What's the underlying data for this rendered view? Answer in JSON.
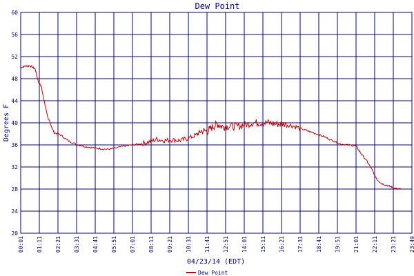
{
  "chart_data": {
    "type": "line",
    "title": "Dew Point",
    "xlabel": "04/23/14 (EDT)",
    "ylabel": "Degrees F",
    "ylim": [
      20,
      60
    ],
    "yticks": [
      "20",
      "24",
      "28",
      "32",
      "36",
      "40",
      "44",
      "48",
      "52",
      "56",
      "60"
    ],
    "xticks": [
      "00:01",
      "01:11",
      "02:21",
      "03:31",
      "04:41",
      "05:51",
      "07:01",
      "08:11",
      "09:21",
      "10:31",
      "11:41",
      "12:51",
      "14:01",
      "15:11",
      "16:21",
      "17:31",
      "18:41",
      "19:51",
      "21:01",
      "22:11",
      "23:21",
      "23:49"
    ],
    "grid": true,
    "legend_position": "bottom-center",
    "series_color": "#c00000",
    "grid_color": "#000080",
    "series": [
      {
        "name": "Dew Point",
        "x_hours": [
          0.0,
          0.3,
          0.6,
          0.9,
          1.1,
          1.3,
          1.5,
          1.7,
          1.9,
          2.1,
          2.5,
          3.0,
          3.5,
          4.0,
          4.5,
          5.0,
          5.5,
          5.9,
          6.5,
          7.0,
          7.5,
          8.0,
          8.5,
          9.0,
          9.5,
          10.0,
          10.5,
          11.0,
          11.3,
          11.7,
          12.0,
          12.3,
          12.6,
          13.0,
          13.5,
          14.0,
          14.5,
          15.0,
          15.5,
          16.0,
          16.5,
          17.0,
          17.5,
          18.0,
          18.5,
          19.0,
          19.5,
          20.0,
          20.5,
          21.0,
          21.3,
          21.7,
          22.0,
          22.3,
          22.6,
          23.0,
          23.3,
          23.6,
          23.82
        ],
        "values": [
          50.0,
          50.3,
          50.3,
          49.8,
          47.5,
          46.5,
          43.5,
          41.0,
          39.5,
          38.2,
          37.8,
          36.7,
          36.1,
          35.7,
          35.5,
          35.3,
          35.2,
          35.4,
          35.8,
          36.0,
          36.2,
          36.5,
          37.0,
          36.8,
          36.9,
          36.8,
          37.2,
          37.8,
          38.5,
          38.5,
          39.2,
          39.8,
          39.3,
          39.4,
          39.3,
          39.6,
          40.0,
          40.0,
          40.0,
          39.8,
          39.8,
          39.5,
          39.0,
          38.5,
          38.0,
          37.5,
          36.8,
          36.2,
          36.0,
          35.8,
          34.5,
          33.0,
          31.5,
          29.8,
          29.0,
          28.6,
          28.3,
          28.0,
          28.0
        ]
      }
    ]
  }
}
